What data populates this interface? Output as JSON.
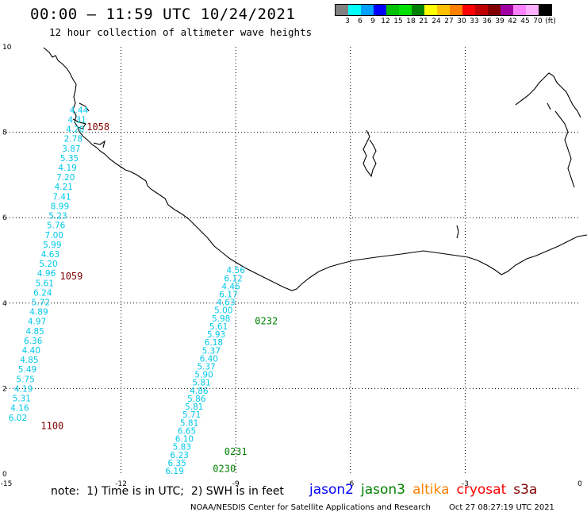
{
  "title": "00:00 – 11:59 UTC 10/24/2021",
  "subtitle": "12 hour collection of altimeter wave heights",
  "legend": {
    "colors": [
      "#808080",
      "#00ffff",
      "#00a0ff",
      "#0000ff",
      "#00c000",
      "#00e000",
      "#008000",
      "#ffff00",
      "#ffc000",
      "#ff8000",
      "#ff0000",
      "#c00000",
      "#800000",
      "#a000a0",
      "#ff80ff",
      "#ffb0ff",
      "#000000"
    ],
    "labels": [
      "3",
      "6",
      "9",
      "12",
      "15",
      "18",
      "21",
      "24",
      "27",
      "30",
      "33",
      "36",
      "39",
      "42",
      "45",
      "70",
      "(ft)"
    ]
  },
  "axes": {
    "x_ticks": [
      "-15",
      "-12",
      "-9",
      "-6",
      "-3",
      "0"
    ],
    "y_ticks": [
      "0",
      "2",
      "4",
      "6",
      "8",
      "10"
    ],
    "x_range": [
      -15,
      0
    ],
    "y_range": [
      0,
      10
    ],
    "grid": "dotted"
  },
  "tracks": [
    {
      "name": "west-descending",
      "start_lon": -13.1,
      "start_lat": 8.45,
      "end_lon": -14.7,
      "end_lat": 1.25,
      "color": "#00c8e8",
      "values": [
        "4.44",
        "4.31",
        "4.20",
        "2.78",
        "3.87",
        "5.35",
        "4.19",
        "7.20",
        "4.21",
        "7.41",
        "8.99",
        "5.23",
        "5.76",
        "7.00",
        "5.99",
        "4.63",
        "5.20",
        "4.96",
        "5.61",
        "6.24",
        "5.72",
        "4.89",
        "4.97",
        "4.85",
        "6.36",
        "4.40",
        "4.85",
        "5.49",
        "5.75",
        "4.19",
        "5.31",
        "4.16",
        "6.02"
      ]
    },
    {
      "name": "center-ascending",
      "start_lon": -10.6,
      "start_lat": 0.0,
      "end_lon": -9.0,
      "end_lat": 4.7,
      "color": "#00c8e8",
      "values": [
        "6.19",
        "6.35",
        "6.23",
        "5.83",
        "6.10",
        "6.65",
        "5.81",
        "5.71",
        "5.81",
        "5.86",
        "4.86",
        "5.81",
        "5.90",
        "5.37",
        "6.40",
        "5.37",
        "6.18",
        "5.93",
        "5.61",
        "5.98",
        "5.00",
        "4.63",
        "6.17",
        "4.46",
        "6.12",
        "4.56"
      ]
    }
  ],
  "time_labels": [
    {
      "text": "1058",
      "lon": -12.9,
      "lat": 8.05,
      "color": "#800000"
    },
    {
      "text": "1059",
      "lon": -13.6,
      "lat": 4.55,
      "color": "#800000"
    },
    {
      "text": "1100",
      "lon": -14.1,
      "lat": 1.05,
      "color": "#800000"
    },
    {
      "text": "0232",
      "lon": -8.5,
      "lat": 3.5,
      "color": "#008000"
    },
    {
      "text": "0231",
      "lon": -9.3,
      "lat": 0.45,
      "color": "#008000"
    },
    {
      "text": "0230",
      "lon": -9.6,
      "lat": 0.05,
      "color": "#008000"
    }
  ],
  "note": "note:  1) Time is in UTC;  2) SWH is in feet",
  "satellites": [
    {
      "name": "jason2",
      "color": "#0000ff"
    },
    {
      "name": "jason3",
      "color": "#008000"
    },
    {
      "name": "altika",
      "color": "#ff8000"
    },
    {
      "name": "cryosat",
      "color": "#ff0000"
    },
    {
      "name": "s3a",
      "color": "#800000"
    }
  ],
  "credit": "NOAA/NESDIS Center for Satellite Applications and Research",
  "timestamp": "Oct 27 08:27:19 UTC 2021"
}
